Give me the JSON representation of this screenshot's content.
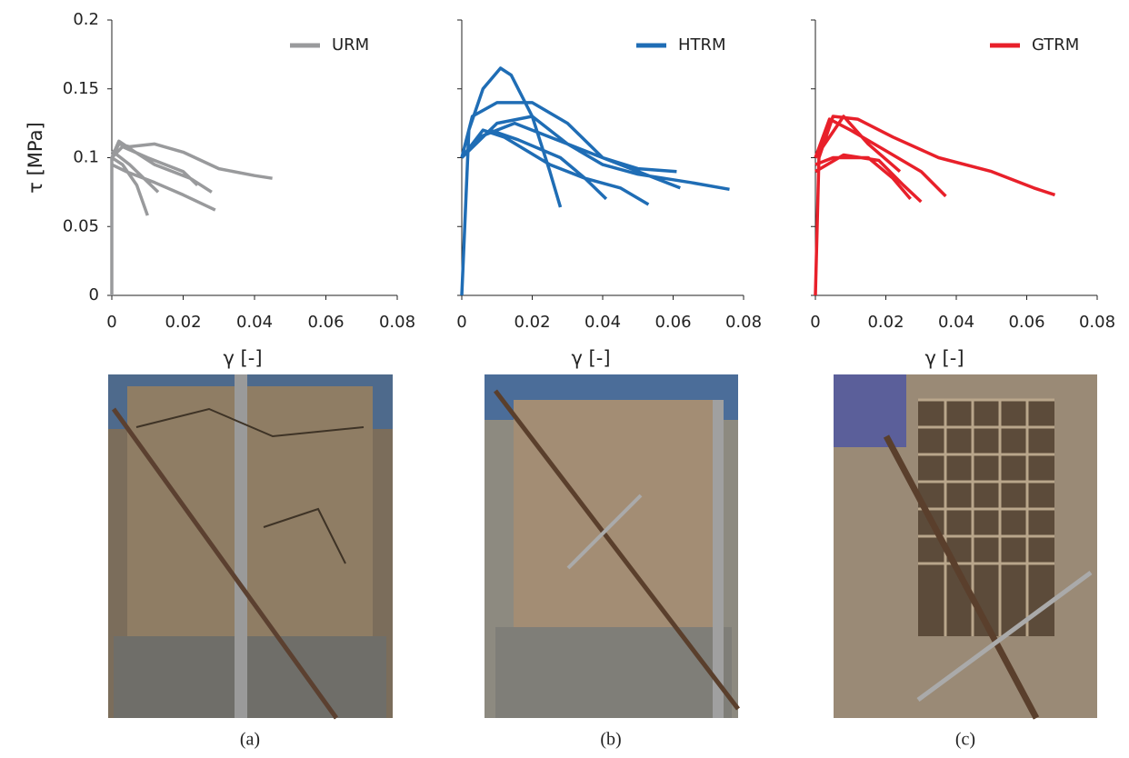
{
  "chart_data": [
    {
      "type": "line",
      "xlabel": "γ [-]",
      "ylabel": "τ [MPa]",
      "caption": "(a)",
      "xlim": [
        0,
        0.08
      ],
      "xticks": [
        0,
        0.02,
        0.04,
        0.06,
        0.08
      ],
      "ylim": [
        0,
        0.2
      ],
      "yticks": [
        0,
        0.05,
        0.1,
        0.15,
        0.2
      ],
      "ytick_labels": true,
      "legend": "upper right",
      "series": [
        {
          "name": "URM",
          "color": "#999a9c",
          "x": [
            0,
            0,
            0.002,
            0.005,
            0.012,
            0.02,
            0.03,
            0.04,
            0.045,
            null,
            0,
            0.002,
            0.006,
            0.012,
            0.022,
            0.028,
            null,
            0,
            0.003,
            0.01,
            0.02,
            0.024,
            null,
            0,
            0.004,
            0.012,
            0.02,
            0.029,
            null,
            0,
            0.003,
            0.007,
            0.01,
            null,
            0,
            0.005,
            0.013
          ],
          "values": [
            0,
            0.1,
            0.11,
            0.108,
            0.11,
            0.104,
            0.092,
            0.087,
            0.085,
            null,
            0.1,
            0.112,
            0.105,
            0.095,
            0.085,
            0.075,
            null,
            0.1,
            0.108,
            0.1,
            0.09,
            0.08,
            null,
            0.095,
            0.09,
            0.082,
            0.073,
            0.062,
            null,
            0.1,
            0.095,
            0.08,
            0.058,
            null,
            0.105,
            0.095,
            0.075
          ]
        }
      ]
    },
    {
      "type": "line",
      "xlabel": "γ [-]",
      "caption": "(b)",
      "xlim": [
        0,
        0.08
      ],
      "xticks": [
        0,
        0.02,
        0.04,
        0.06,
        0.08
      ],
      "ylim": [
        0,
        0.2
      ],
      "yticks": [
        0,
        0.05,
        0.1,
        0.15,
        0.2
      ],
      "ytick_labels": false,
      "legend": "upper right",
      "series": [
        {
          "name": "HTRM",
          "color": "#1f6db5",
          "x": [
            0,
            0.002,
            0.006,
            0.011,
            0.014,
            0.02,
            0.025,
            0.028,
            null,
            0,
            0.003,
            0.01,
            0.02,
            0.03,
            0.04,
            0.05,
            0.061,
            null,
            0,
            0.005,
            0.015,
            0.03,
            0.04,
            0.05,
            0.065,
            0.076,
            null,
            0,
            0.006,
            0.012,
            0.025,
            0.035,
            0.045,
            0.053,
            null,
            0,
            0.008,
            0.016,
            0.028,
            0.035,
            0.041,
            null,
            0,
            0.01,
            0.02,
            0.03,
            0.045,
            0.06,
            0.062
          ],
          "values": [
            0,
            0.12,
            0.15,
            0.165,
            0.16,
            0.13,
            0.09,
            0.064,
            null,
            0.1,
            0.13,
            0.14,
            0.14,
            0.125,
            0.1,
            0.092,
            0.09,
            null,
            0.1,
            0.115,
            0.125,
            0.11,
            0.095,
            0.088,
            0.082,
            0.077,
            null,
            0.1,
            0.12,
            0.115,
            0.095,
            0.085,
            0.078,
            0.066,
            null,
            0.1,
            0.12,
            0.113,
            0.1,
            0.085,
            0.07,
            null,
            0.1,
            0.125,
            0.13,
            0.11,
            0.095,
            0.08,
            0.078
          ]
        }
      ]
    },
    {
      "type": "line",
      "xlabel": "γ [-]",
      "caption": "(c)",
      "xlim": [
        0,
        0.08
      ],
      "xticks": [
        0,
        0.02,
        0.04,
        0.06,
        0.08
      ],
      "ylim": [
        0,
        0.2
      ],
      "yticks": [
        0,
        0.05,
        0.1,
        0.15,
        0.2
      ],
      "ytick_labels": false,
      "legend": "upper right",
      "series": [
        {
          "name": "GTRM",
          "color": "#e8202a",
          "x": [
            0,
            0.001,
            0.005,
            0.012,
            0.022,
            0.035,
            0.05,
            0.062,
            0.068,
            null,
            0,
            0.004,
            0.01,
            0.02,
            0.03,
            0.037,
            null,
            0,
            0.008,
            0.015,
            0.024,
            null,
            0,
            0.005,
            0.015,
            0.022,
            0.027,
            null,
            0,
            0.008,
            0.018,
            0.025,
            0.03
          ],
          "values": [
            0,
            0.1,
            0.13,
            0.128,
            0.115,
            0.1,
            0.09,
            0.078,
            0.073,
            null,
            0.1,
            0.128,
            0.12,
            0.105,
            0.09,
            0.072,
            null,
            0.1,
            0.13,
            0.11,
            0.09,
            null,
            0.095,
            0.1,
            0.1,
            0.085,
            0.07,
            null,
            0.09,
            0.102,
            0.098,
            0.08,
            0.068
          ]
        }
      ]
    }
  ]
}
